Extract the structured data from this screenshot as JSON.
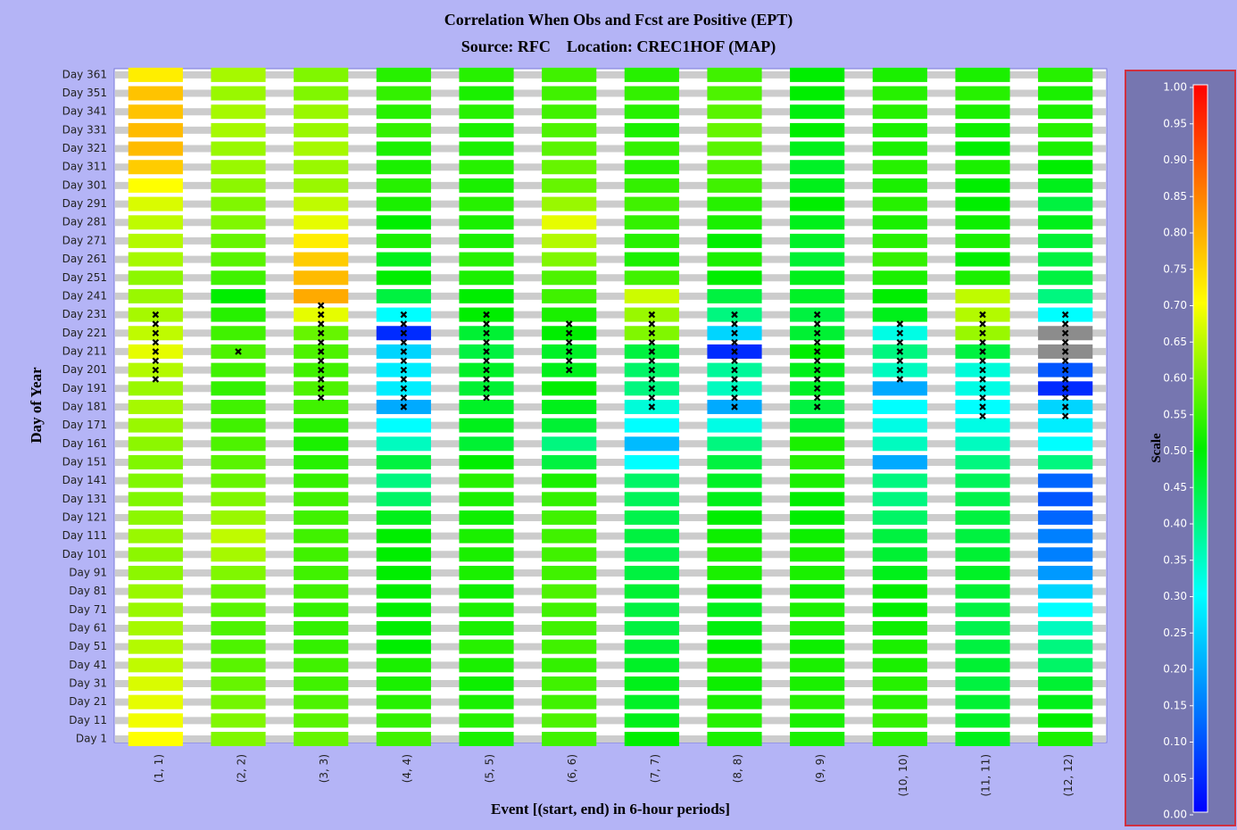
{
  "chart_data": {
    "type": "heatmap",
    "title": "Correlation When Obs and Fcst are Positive (EPT)",
    "subtitle": "Source: RFC    Location: CREC1HOF (MAP)",
    "x_label": "Event [(start, end) in 6-hour periods]",
    "y_label": "Day of Year",
    "x_categories": [
      "(1, 1)",
      "(2, 2)",
      "(3, 3)",
      "(4, 4)",
      "(5, 5)",
      "(6, 6)",
      "(7, 7)",
      "(8, 8)",
      "(9, 9)",
      "(10, 10)",
      "(11, 11)",
      "(12, 12)"
    ],
    "y_categories": [
      "Day 1",
      "Day 11",
      "Day 21",
      "Day 31",
      "Day 41",
      "Day 51",
      "Day 61",
      "Day 71",
      "Day 81",
      "Day 91",
      "Day 101",
      "Day 111",
      "Day 121",
      "Day 131",
      "Day 141",
      "Day 151",
      "Day 161",
      "Day 171",
      "Day 181",
      "Day 191",
      "Day 201",
      "Day 211",
      "Day 221",
      "Day 231",
      "Day 241",
      "Day 251",
      "Day 261",
      "Day 271",
      "Day 281",
      "Day 291",
      "Day 301",
      "Day 311",
      "Day 321",
      "Day 331",
      "Day 341",
      "Day 351",
      "Day 361"
    ],
    "values": [
      [
        0.7,
        0.69,
        0.68,
        0.67,
        0.65,
        0.64,
        0.63,
        0.62,
        0.62,
        0.61,
        0.61,
        0.62,
        0.61,
        0.6,
        0.6,
        0.6,
        0.61,
        0.62,
        0.63,
        0.62,
        0.64,
        0.68,
        0.65,
        0.63,
        0.62,
        0.61,
        0.63,
        0.64,
        0.65,
        0.67,
        0.7,
        0.76,
        0.78,
        0.78,
        0.77,
        0.77,
        0.72
      ],
      [
        0.6,
        0.6,
        0.59,
        0.58,
        0.57,
        0.56,
        0.56,
        0.57,
        0.58,
        0.6,
        0.63,
        0.65,
        0.62,
        0.6,
        0.58,
        0.57,
        0.56,
        0.55,
        0.55,
        0.54,
        0.55,
        0.56,
        0.55,
        0.53,
        0.5,
        0.55,
        0.57,
        0.58,
        0.6,
        0.6,
        0.61,
        0.62,
        0.62,
        0.63,
        0.63,
        0.62,
        0.63
      ],
      [
        0.58,
        0.57,
        0.56,
        0.55,
        0.55,
        0.54,
        0.54,
        0.54,
        0.55,
        0.55,
        0.55,
        0.55,
        0.55,
        0.55,
        0.54,
        0.53,
        0.52,
        0.53,
        0.55,
        0.56,
        0.55,
        0.56,
        0.58,
        0.68,
        0.8,
        0.78,
        0.76,
        0.72,
        0.68,
        0.65,
        0.62,
        0.62,
        0.63,
        0.62,
        0.62,
        0.6,
        0.6
      ],
      [
        0.55,
        0.54,
        0.53,
        0.52,
        0.52,
        0.5,
        0.5,
        0.5,
        0.5,
        0.5,
        0.5,
        0.5,
        0.48,
        0.42,
        0.4,
        0.45,
        0.35,
        0.3,
        0.2,
        0.28,
        0.28,
        0.25,
        0.05,
        0.3,
        0.45,
        0.5,
        0.48,
        0.52,
        0.5,
        0.52,
        0.53,
        0.52,
        0.52,
        0.54,
        0.53,
        0.54,
        0.53
      ],
      [
        0.52,
        0.53,
        0.52,
        0.51,
        0.52,
        0.53,
        0.52,
        0.52,
        0.51,
        0.52,
        0.52,
        0.52,
        0.51,
        0.52,
        0.53,
        0.5,
        0.46,
        0.48,
        0.47,
        0.46,
        0.47,
        0.45,
        0.46,
        0.5,
        0.5,
        0.52,
        0.53,
        0.52,
        0.52,
        0.53,
        0.52,
        0.53,
        0.52,
        0.52,
        0.53,
        0.52,
        0.53
      ],
      [
        0.55,
        0.56,
        0.55,
        0.55,
        0.54,
        0.55,
        0.55,
        0.55,
        0.56,
        0.55,
        0.55,
        0.55,
        0.55,
        0.54,
        0.52,
        0.45,
        0.4,
        0.46,
        0.48,
        0.5,
        0.48,
        0.47,
        0.5,
        0.52,
        0.55,
        0.56,
        0.6,
        0.64,
        0.68,
        0.62,
        0.58,
        0.58,
        0.57,
        0.56,
        0.55,
        0.55,
        0.55
      ],
      [
        0.5,
        0.48,
        0.47,
        0.48,
        0.47,
        0.46,
        0.45,
        0.45,
        0.46,
        0.45,
        0.44,
        0.45,
        0.44,
        0.43,
        0.42,
        0.3,
        0.22,
        0.3,
        0.33,
        0.4,
        0.42,
        0.45,
        0.6,
        0.62,
        0.66,
        0.55,
        0.52,
        0.53,
        0.54,
        0.55,
        0.54,
        0.53,
        0.54,
        0.52,
        0.53,
        0.54,
        0.53
      ],
      [
        0.52,
        0.53,
        0.52,
        0.51,
        0.52,
        0.5,
        0.49,
        0.48,
        0.5,
        0.52,
        0.52,
        0.51,
        0.5,
        0.48,
        0.47,
        0.45,
        0.4,
        0.32,
        0.2,
        0.35,
        0.38,
        0.05,
        0.25,
        0.4,
        0.45,
        0.5,
        0.52,
        0.5,
        0.52,
        0.53,
        0.55,
        0.56,
        0.57,
        0.58,
        0.57,
        0.56,
        0.55
      ],
      [
        0.52,
        0.52,
        0.53,
        0.52,
        0.52,
        0.51,
        0.52,
        0.52,
        0.51,
        0.52,
        0.52,
        0.51,
        0.5,
        0.5,
        0.52,
        0.53,
        0.52,
        0.46,
        0.45,
        0.47,
        0.48,
        0.5,
        0.46,
        0.45,
        0.47,
        0.48,
        0.46,
        0.47,
        0.48,
        0.5,
        0.48,
        0.47,
        0.48,
        0.5,
        0.49,
        0.5,
        0.5
      ],
      [
        0.53,
        0.54,
        0.53,
        0.53,
        0.52,
        0.52,
        0.51,
        0.5,
        0.5,
        0.48,
        0.46,
        0.45,
        0.42,
        0.4,
        0.4,
        0.2,
        0.35,
        0.32,
        0.3,
        0.2,
        0.35,
        0.4,
        0.32,
        0.48,
        0.5,
        0.52,
        0.54,
        0.53,
        0.52,
        0.53,
        0.52,
        0.53,
        0.52,
        0.52,
        0.53,
        0.53,
        0.52
      ],
      [
        0.48,
        0.47,
        0.46,
        0.45,
        0.46,
        0.45,
        0.44,
        0.45,
        0.46,
        0.47,
        0.46,
        0.45,
        0.45,
        0.44,
        0.43,
        0.4,
        0.35,
        0.32,
        0.3,
        0.32,
        0.33,
        0.45,
        0.62,
        0.64,
        0.65,
        0.52,
        0.5,
        0.52,
        0.51,
        0.5,
        0.5,
        0.52,
        0.5,
        0.51,
        0.52,
        0.53,
        0.52
      ],
      [
        0.52,
        0.5,
        0.48,
        0.46,
        0.42,
        0.4,
        0.35,
        0.3,
        0.25,
        0.18,
        0.15,
        0.15,
        0.12,
        0.1,
        0.12,
        0.4,
        0.3,
        0.28,
        0.25,
        0.05,
        0.1,
        null,
        null,
        0.3,
        0.4,
        0.45,
        0.45,
        0.46,
        0.48,
        0.45,
        0.48,
        0.5,
        0.52,
        0.53,
        0.52,
        0.52,
        0.53
      ]
    ],
    "missing_color": "#8c8c8c",
    "marker_days": [
      [
        196,
        201,
        206,
        211,
        216,
        221,
        226,
        231
      ],
      [
        211
      ],
      [
        186,
        191,
        196,
        201,
        206,
        211,
        216,
        221,
        226,
        231,
        236
      ],
      [
        181,
        186,
        191,
        196,
        201,
        206,
        211,
        216,
        221,
        226,
        231
      ],
      [
        186,
        191,
        196,
        201,
        206,
        211,
        216,
        221,
        226,
        231
      ],
      [
        201,
        206,
        211,
        216,
        221,
        226
      ],
      [
        181,
        186,
        191,
        196,
        201,
        206,
        211,
        216,
        221,
        226,
        231
      ],
      [
        181,
        186,
        191,
        196,
        201,
        206,
        211,
        216,
        221,
        226,
        231
      ],
      [
        181,
        186,
        191,
        196,
        201,
        206,
        211,
        216,
        221,
        226,
        231
      ],
      [
        196,
        201,
        206,
        211,
        216,
        221,
        226
      ],
      [
        176,
        181,
        186,
        191,
        196,
        201,
        206,
        211,
        216,
        221,
        226,
        231
      ],
      [
        176,
        181,
        186,
        191,
        196,
        201,
        206,
        211,
        216,
        221,
        226,
        231
      ]
    ],
    "colorscale": [
      {
        "value": 0,
        "color": "#0000ff"
      },
      {
        "value": 0.3,
        "color": "#00ffff"
      },
      {
        "value": 0.5,
        "color": "#00ee00"
      },
      {
        "value": 0.7,
        "color": "#ffff00"
      },
      {
        "value": 0.82,
        "color": "#ff9900"
      },
      {
        "value": 1,
        "color": "#ff0000"
      }
    ],
    "colorbar": {
      "label": "Scale",
      "lim": [
        0,
        1
      ],
      "ticks": [
        {
          "value": 0,
          "label": "0.00"
        },
        {
          "value": 0.05,
          "label": "0.05"
        },
        {
          "value": 0.1,
          "label": "0.10"
        },
        {
          "value": 0.15,
          "label": "0.15"
        },
        {
          "value": 0.2,
          "label": "0.20"
        },
        {
          "value": 0.25,
          "label": "0.25"
        },
        {
          "value": 0.3,
          "label": "0.30"
        },
        {
          "value": 0.35,
          "label": "0.35"
        },
        {
          "value": 0.4,
          "label": "0.40"
        },
        {
          "value": 0.45,
          "label": "0.45"
        },
        {
          "value": 0.5,
          "label": "0.50"
        },
        {
          "value": 0.55,
          "label": "0.55"
        },
        {
          "value": 0.6,
          "label": "0.60"
        },
        {
          "value": 0.65,
          "label": "0.65"
        },
        {
          "value": 0.7,
          "label": "0.70"
        },
        {
          "value": 0.75,
          "label": "0.75"
        },
        {
          "value": 0.8,
          "label": "0.80"
        },
        {
          "value": 0.85,
          "label": "0.85"
        },
        {
          "value": 0.9,
          "label": "0.90"
        },
        {
          "value": 0.95,
          "label": "0.95"
        },
        {
          "value": 1,
          "label": "1.00"
        }
      ]
    }
  }
}
